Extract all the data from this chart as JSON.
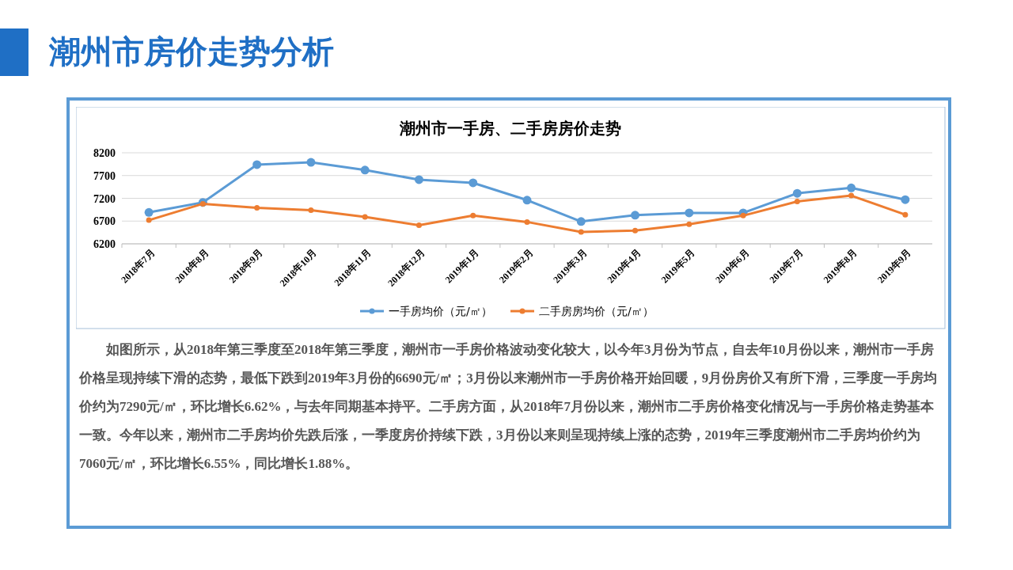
{
  "chart_data": {
    "type": "line",
    "title": "潮州市房价走势分析",
    "subtitle": "潮州市一手房、二手房房价走势",
    "categories": [
      "2018年7月",
      "2018年8月",
      "2018年9月",
      "2018年10月",
      "2018年11月",
      "2018年12月",
      "2019年1月",
      "2019年2月",
      "2019年3月",
      "2019年4月",
      "2019年5月",
      "2019年6月",
      "2019年7月",
      "2019年8月",
      "2019年9月"
    ],
    "series": [
      {
        "name": "一手房均价（元/㎡）",
        "color": "#5b9bd5",
        "values": [
          6890,
          7110,
          7940,
          7990,
          7820,
          7610,
          7540,
          7160,
          6690,
          6830,
          6880,
          6880,
          7310,
          7430,
          7170
        ]
      },
      {
        "name": "二手房房均价（元/㎡）",
        "color": "#ed7d31",
        "values": [
          6720,
          7080,
          6990,
          6940,
          6790,
          6610,
          6820,
          6680,
          6460,
          6490,
          6630,
          6820,
          7130,
          7260,
          6840
        ]
      }
    ],
    "ylim": [
      6200,
      8200
    ],
    "yticks": [
      6200,
      6700,
      7200,
      7700,
      8200
    ],
    "grid": "y",
    "legend": "bottom",
    "marker": "circle",
    "line_style": "solid",
    "annotations": [
      "如图所示，从2018年第三季度至2018年第三季度，潮州市一手房价格波动变化较大，以今年3月份为节点，自去年10月份以来，潮州市一手房价格呈现持续下滑的态势，最低下跌到2019年3月份的6690元/㎡；3月份以来潮州市一手房价格开始回暖，9月份房价又有所下滑，三季度一手房均价约为7290元/㎡，环比增长6.62%，与去年同期基本持平。二手房方面，从2018年7月份以来，潮州市二手房价格变化情况与一手房价格走势基本一致。今年以来，潮州市二手房均价先跌后涨，一季度房价持续下跌，3月份以来则呈现持续上涨的态势，2019年三季度潮州市二手房均价约为7060元/㎡，环比增长6.55%，同比增长1.88%。"
    ]
  }
}
